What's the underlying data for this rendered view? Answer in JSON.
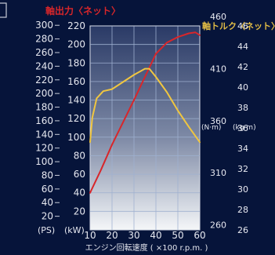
{
  "chart_data": {
    "type": "line",
    "title_power": "軸出力〈ネット〉",
    "title_torque": "軸トルク〈ネット〉",
    "xlabel": "エンジン回転速度 ( ×100 r.p.m. )",
    "x_ticks": [
      "10",
      "20",
      "30",
      "40",
      "50",
      "60"
    ],
    "ps_label": "(PS)",
    "kw_label": "(kW)",
    "ps_ticks": [
      "20",
      "40",
      "60",
      "80",
      "100",
      "120",
      "140",
      "160",
      "180",
      "200",
      "220",
      "240",
      "260",
      "280",
      "300"
    ],
    "kw_ticks": [
      "20",
      "40",
      "60",
      "80",
      "100",
      "120",
      "140",
      "160",
      "180",
      "200",
      "220"
    ],
    "nm_label": "(N·m)",
    "kgm_label": "(kg·m)",
    "nm_ticks": [
      "260",
      "310",
      "360",
      "410",
      "460"
    ],
    "kgm_ticks": [
      "26",
      "28",
      "30",
      "32",
      "34",
      "36",
      "38",
      "40",
      "42",
      "44",
      "46"
    ],
    "xlim": [
      10,
      60
    ],
    "power_kw_lim": [
      0,
      220
    ],
    "torque_kgm_lim": [
      26,
      46
    ],
    "series": [
      {
        "color": "#d8262a",
        "axis": "kW",
        "x": [
          10,
          15,
          20,
          25,
          30,
          35,
          40,
          45,
          50,
          55,
          58,
          60
        ],
        "values": [
          40,
          65,
          92,
          116,
          140,
          165,
          190,
          202,
          208,
          212,
          213,
          210
        ]
      },
      {
        "color": "#f0c640",
        "axis": "kg·m",
        "x": [
          10,
          11,
          13,
          16,
          20,
          25,
          30,
          35,
          37,
          40,
          45,
          50,
          55,
          60
        ],
        "values": [
          34.6,
          37.0,
          38.9,
          39.6,
          39.8,
          40.5,
          41.2,
          41.8,
          41.8,
          41.0,
          39.5,
          37.7,
          36.1,
          34.6
        ]
      }
    ]
  }
}
